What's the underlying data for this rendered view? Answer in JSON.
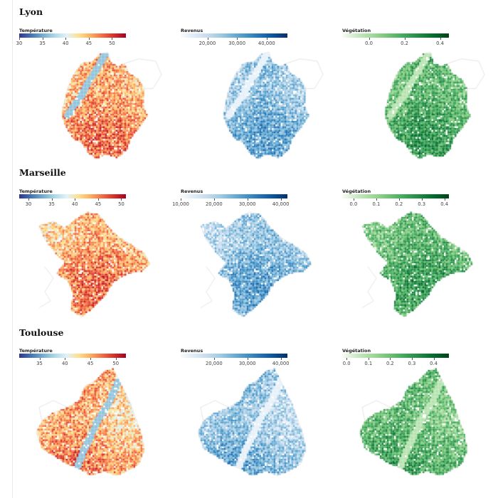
{
  "legends": {
    "temperature": {
      "title": "Température",
      "colors": [
        "#313695",
        "#4575b4",
        "#74add1",
        "#abd9e9",
        "#e0f3f8",
        "#fee090",
        "#fdae61",
        "#f46d43",
        "#d73027",
        "#a50026"
      ]
    },
    "revenue": {
      "title": "Revenus",
      "colors": [
        "#f7fbff",
        "#deebf7",
        "#c6dbef",
        "#9ecae1",
        "#6baed6",
        "#4292c6",
        "#2171b5",
        "#08519c",
        "#08306b"
      ]
    },
    "vegetation": {
      "title": "Végétation",
      "colors": [
        "#f7fcf5",
        "#c7e9c0",
        "#a1d99b",
        "#74c476",
        "#41ab5d",
        "#238b45",
        "#006d2c",
        "#00441b"
      ]
    }
  },
  "cities": [
    {
      "name": "Lyon",
      "maps": [
        {
          "layer": "temperature",
          "domain": [
            30,
            53
          ],
          "ticks": [
            {
              "v": 30,
              "label": "30"
            },
            {
              "v": 35,
              "label": "35"
            },
            {
              "v": 40,
              "label": "40"
            },
            {
              "v": 45,
              "label": "45"
            },
            {
              "v": 50,
              "label": "50"
            }
          ]
        },
        {
          "layer": "revenue",
          "domain": [
            11000,
            47000
          ],
          "ticks": [
            {
              "v": 20000,
              "label": "20,000"
            },
            {
              "v": 30000,
              "label": "30,000"
            },
            {
              "v": 40000,
              "label": "40,000"
            }
          ]
        },
        {
          "layer": "vegetation",
          "domain": [
            -0.15,
            0.45
          ],
          "ticks": [
            {
              "v": 0,
              "label": "0.0"
            },
            {
              "v": 0.2,
              "label": "0.2"
            },
            {
              "v": 0.4,
              "label": "0.4"
            }
          ]
        }
      ]
    },
    {
      "name": "Marseille",
      "maps": [
        {
          "layer": "temperature",
          "domain": [
            28,
            51
          ],
          "ticks": [
            {
              "v": 30,
              "label": "30"
            },
            {
              "v": 35,
              "label": "35"
            },
            {
              "v": 40,
              "label": "40"
            },
            {
              "v": 45,
              "label": "45"
            },
            {
              "v": 50,
              "label": "50"
            }
          ]
        },
        {
          "layer": "revenue",
          "domain": [
            10000,
            42000
          ],
          "ticks": [
            {
              "v": 10000,
              "label": "10,000"
            },
            {
              "v": 20000,
              "label": "20,000"
            },
            {
              "v": 30000,
              "label": "30,000"
            },
            {
              "v": 40000,
              "label": "40,000"
            }
          ]
        },
        {
          "layer": "vegetation",
          "domain": [
            -0.05,
            0.42
          ],
          "ticks": [
            {
              "v": 0,
              "label": "0.0"
            },
            {
              "v": 0.1,
              "label": "0.1"
            },
            {
              "v": 0.2,
              "label": "0.2"
            },
            {
              "v": 0.3,
              "label": "0.3"
            },
            {
              "v": 0.4,
              "label": "0.4"
            }
          ]
        }
      ]
    },
    {
      "name": "Toulouse",
      "maps": [
        {
          "layer": "temperature",
          "domain": [
            31,
            52
          ],
          "ticks": [
            {
              "v": 35,
              "label": "35"
            },
            {
              "v": 40,
              "label": "40"
            },
            {
              "v": 45,
              "label": "45"
            },
            {
              "v": 50,
              "label": "50"
            }
          ]
        },
        {
          "layer": "revenue",
          "domain": [
            10000,
            42000
          ],
          "ticks": [
            {
              "v": 20000,
              "label": "20,000"
            },
            {
              "v": 30000,
              "label": "30,000"
            },
            {
              "v": 40000,
              "label": "40,000"
            }
          ]
        },
        {
          "layer": "vegetation",
          "domain": [
            -0.02,
            0.47
          ],
          "ticks": [
            {
              "v": 0,
              "label": "0.0"
            },
            {
              "v": 0.1,
              "label": "0.1"
            },
            {
              "v": 0.2,
              "label": "0.2"
            },
            {
              "v": 0.3,
              "label": "0.3"
            },
            {
              "v": 0.4,
              "label": "0.4"
            }
          ]
        }
      ]
    }
  ]
}
